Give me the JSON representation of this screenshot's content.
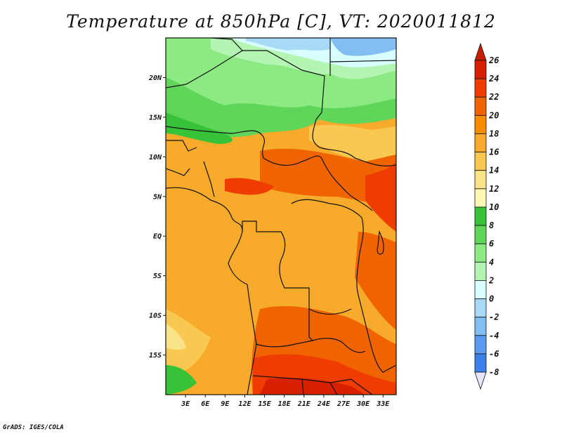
{
  "title": "Temperature at 850hPa [C], VT: 2020011812",
  "footer": "GrADS: IGES/COLA",
  "map": {
    "lat_labels": [
      "20N",
      "15N",
      "10N",
      "5N",
      "EQ",
      "5S",
      "10S",
      "15S"
    ],
    "lon_labels": [
      "3E",
      "6E",
      "9E",
      "12E",
      "15E",
      "18E",
      "21E",
      "24E",
      "27E",
      "30E",
      "33E"
    ],
    "lat_range": [
      -20,
      25
    ],
    "lon_range": [
      0,
      35
    ]
  },
  "colorbar": {
    "labels": [
      "26",
      "24",
      "22",
      "20",
      "18",
      "16",
      "14",
      "12",
      "10",
      "8",
      "6",
      "4",
      "2",
      "0",
      "-2",
      "-4",
      "-6",
      "-8"
    ],
    "colors": [
      "#d72000",
      "#ef3c00",
      "#f06400",
      "#f68c00",
      "#f8aa2a",
      "#f9c850",
      "#fbe38a",
      "#fdf7b4",
      "#37c337",
      "#5fd65a",
      "#8cea82",
      "#b4f5b4",
      "#d8fffe",
      "#a8daf8",
      "#82bef2",
      "#5c9cf0",
      "#3c7fe8",
      "#1d5ed7",
      "#0d3ec7",
      "#0a1ea0"
    ],
    "top_color": "#c81e00",
    "bottom_color": "#e6e6fa"
  }
}
